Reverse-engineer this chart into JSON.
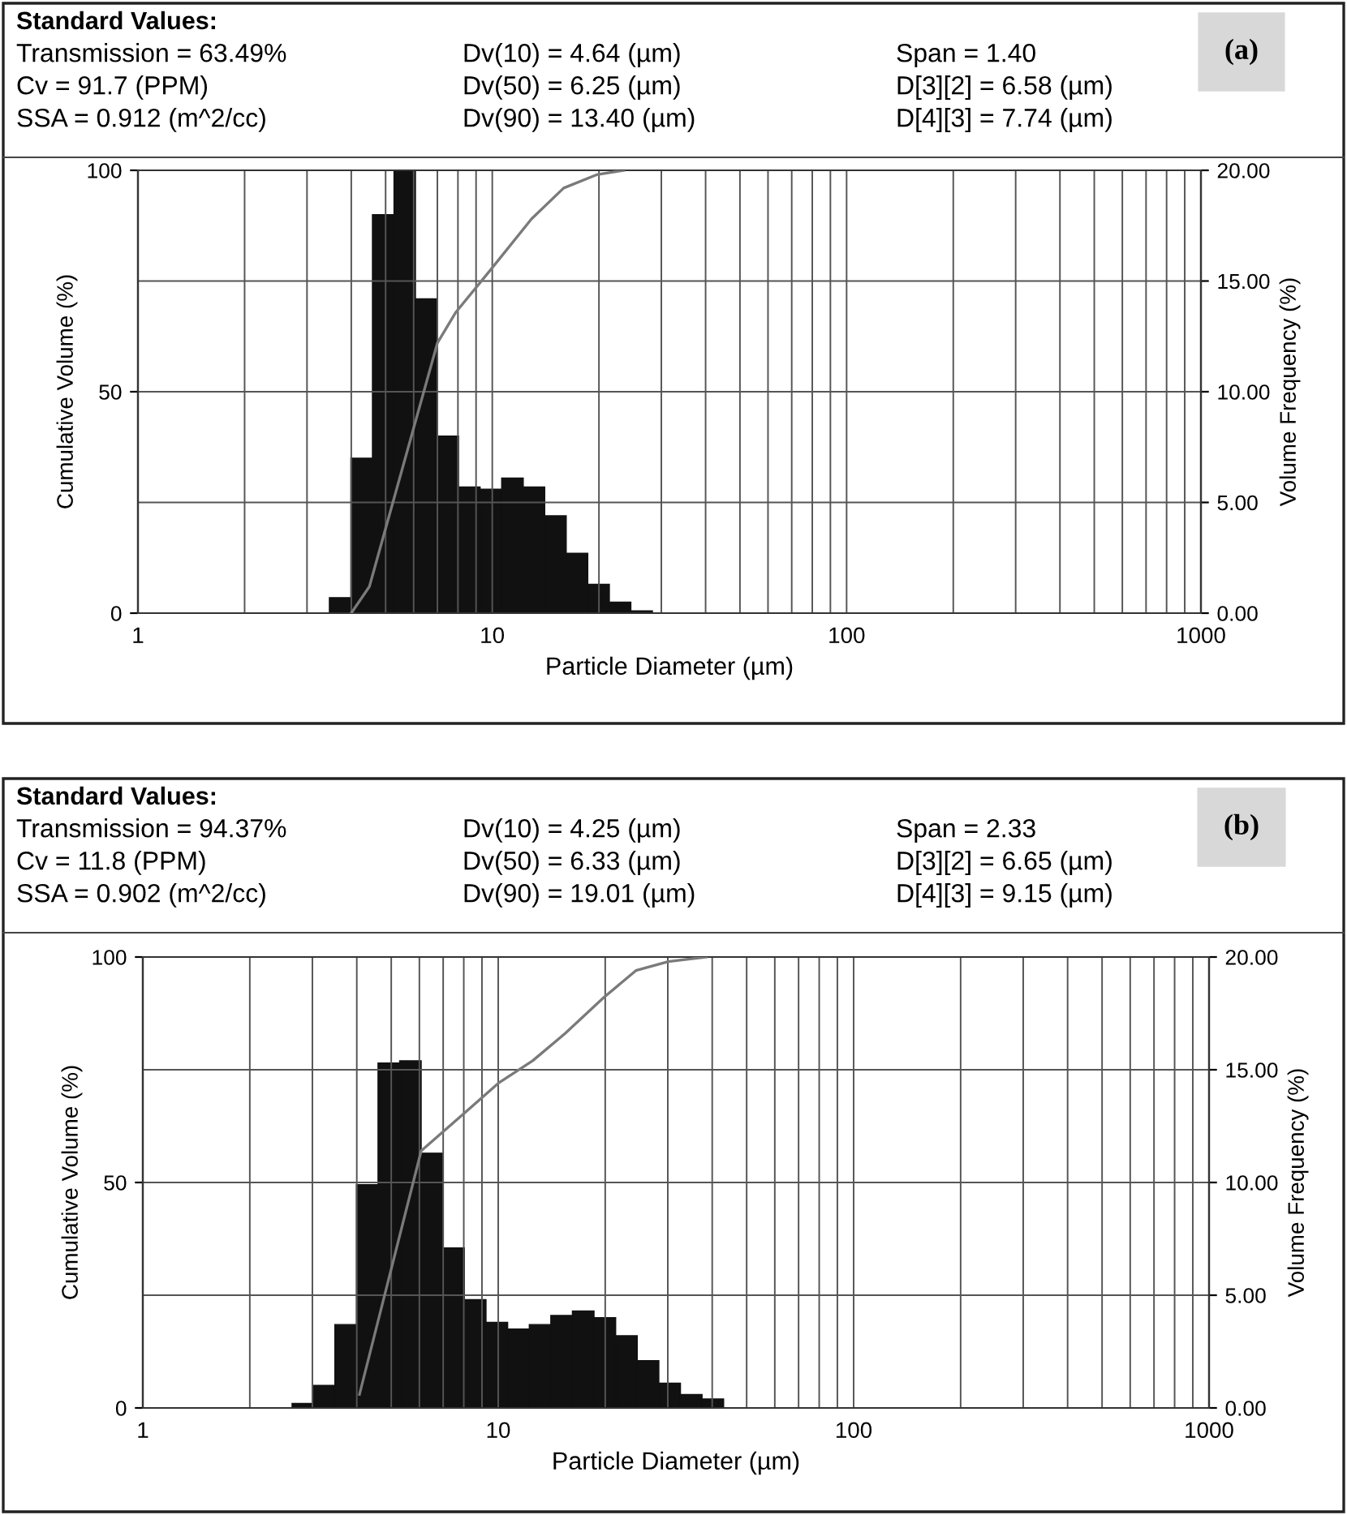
{
  "chart_data": [
    {
      "type": "histogram",
      "xlabel": "Particle Diameter (µm)",
      "ylabel": "Cumulative Volume (%)",
      "y2label": "Volume Frequency (%)",
      "log": "x",
      "grid": true,
      "line_style": "solid",
      "annotations": [
        "Standard Values:",
        "Transmission = 63.49%",
        "Cv = 91.7 (PPM)",
        "SSA = 0.912 (m^2/cc)",
        "Dv(10) = 4.64 (µm)",
        "Dv(50) = 6.25 (µm)",
        "Dv(90) = 13.40 (µm)",
        "Span = 1.40",
        "D[3][2] = 6.58 (µm)",
        "D[4][3] = 7.74 (µm)",
        "(a)"
      ],
      "xlim": [
        1,
        1000
      ],
      "xticks": [
        1,
        {
          "value": 2,
          "label": null
        },
        {
          "value": 3,
          "label": null
        },
        {
          "value": 4,
          "label": null
        },
        {
          "value": 5,
          "label": null
        },
        {
          "value": 6,
          "label": null
        },
        {
          "value": 7,
          "label": null
        },
        {
          "value": 8,
          "label": null
        },
        {
          "value": 9,
          "label": null
        },
        10,
        {
          "value": 20,
          "label": null
        },
        {
          "value": 30,
          "label": null
        },
        {
          "value": 40,
          "label": null
        },
        {
          "value": 50,
          "label": null
        },
        {
          "value": 60,
          "label": null
        },
        {
          "value": 70,
          "label": null
        },
        {
          "value": 80,
          "label": null
        },
        {
          "value": 90,
          "label": null
        },
        100,
        {
          "value": 200,
          "label": null
        },
        {
          "value": 300,
          "label": null
        },
        {
          "value": 400,
          "label": null
        },
        {
          "value": 500,
          "label": null
        },
        {
          "value": 600,
          "label": null
        },
        {
          "value": 700,
          "label": null
        },
        {
          "value": 800,
          "label": null
        },
        {
          "value": 900,
          "label": null
        },
        1000
      ],
      "ylim": [
        0,
        100
      ],
      "yticks": [
        0,
        50,
        100
      ],
      "y2lim": [
        0,
        20
      ],
      "y2ticks": [
        {
          "value": 0,
          "label": "0.00"
        },
        {
          "value": 5,
          "label": "5.00"
        },
        {
          "value": 10,
          "label": "10.00"
        },
        {
          "value": 15,
          "label": "15.00"
        },
        {
          "value": 20,
          "label": "20.00"
        }
      ],
      "series": [
        {
          "axis": "y2",
          "color": "#111111",
          "bins": [
            3.47,
            3.99,
            4.59,
            5.28,
            6.07,
            6.98,
            8.03,
            9.24,
            10.63,
            12.23,
            14.06,
            16.17,
            18.6,
            21.4,
            24.61,
            28.31
          ],
          "values": [
            0.7,
            7.0,
            18.0,
            20.0,
            14.2,
            8.0,
            5.7,
            5.6,
            6.1,
            5.7,
            4.4,
            2.7,
            1.3,
            0.5,
            0.1
          ]
        },
        {
          "type": "line",
          "color": "#7a7a7a",
          "x": [
            4.0,
            4.5,
            7.0,
            7.9,
            10.0,
            12.9,
            15.9,
            19.7,
            23.5
          ],
          "values": [
            0,
            6,
            61,
            68,
            78,
            89,
            96,
            99,
            100
          ]
        }
      ]
    },
    {
      "type": "histogram",
      "xlabel": "Particle Diameter (µm)",
      "ylabel": "Cumulative Volume (%)",
      "y2label": "Volume Frequency (%)",
      "log": "x",
      "grid": true,
      "line_style": "solid",
      "annotations": [
        "Standard Values:",
        "Transmission = 94.37%",
        "Cv = 11.8 (PPM)",
        "SSA = 0.902 (m^2/cc)",
        "Dv(10) = 4.25 (µm)",
        "Dv(50) = 6.33 (µm)",
        "Dv(90) = 19.01 (µm)",
        "Span = 2.33",
        "D[3][2] = 6.65 (µm)",
        "D[4][3] = 9.15 (µm)",
        "(b)"
      ],
      "xlim": [
        1,
        1000
      ],
      "xticks": [
        1,
        {
          "value": 2,
          "label": null
        },
        {
          "value": 3,
          "label": null
        },
        {
          "value": 4,
          "label": null
        },
        {
          "value": 5,
          "label": null
        },
        {
          "value": 6,
          "label": null
        },
        {
          "value": 7,
          "label": null
        },
        {
          "value": 8,
          "label": null
        },
        {
          "value": 9,
          "label": null
        },
        10,
        {
          "value": 20,
          "label": null
        },
        {
          "value": 30,
          "label": null
        },
        {
          "value": 40,
          "label": null
        },
        {
          "value": 50,
          "label": null
        },
        {
          "value": 60,
          "label": null
        },
        {
          "value": 70,
          "label": null
        },
        {
          "value": 80,
          "label": null
        },
        {
          "value": 90,
          "label": null
        },
        100,
        {
          "value": 200,
          "label": null
        },
        {
          "value": 300,
          "label": null
        },
        {
          "value": 400,
          "label": null
        },
        {
          "value": 500,
          "label": null
        },
        {
          "value": 600,
          "label": null
        },
        {
          "value": 700,
          "label": null
        },
        {
          "value": 800,
          "label": null
        },
        {
          "value": 900,
          "label": null
        },
        1000
      ],
      "ylim": [
        0,
        100
      ],
      "yticks": [
        0,
        50,
        100
      ],
      "y2lim": [
        0,
        20
      ],
      "y2ticks": [
        {
          "value": 0,
          "label": "0.00"
        },
        {
          "value": 5,
          "label": "5.00"
        },
        {
          "value": 10,
          "label": "10.00"
        },
        {
          "value": 15,
          "label": "15.00"
        },
        {
          "value": 20,
          "label": "20.00"
        }
      ],
      "series": [
        {
          "axis": "y2",
          "color": "#111111",
          "bins": [
            2.63,
            3.02,
            3.47,
            3.99,
            4.59,
            5.28,
            6.07,
            6.98,
            8.03,
            9.24,
            10.63,
            12.23,
            14.06,
            16.17,
            18.6,
            21.4,
            24.61,
            28.31,
            32.56,
            37.45,
            43.07
          ],
          "values": [
            0.2,
            1.0,
            3.7,
            9.9,
            15.3,
            15.4,
            11.3,
            7.1,
            4.8,
            3.8,
            3.5,
            3.7,
            4.1,
            4.3,
            4.0,
            3.2,
            2.1,
            1.1,
            0.6,
            0.4
          ]
        },
        {
          "type": "line",
          "color": "#7a7a7a",
          "x": [
            4.07,
            6.07,
            8.2,
            10.0,
            12.5,
            15.4,
            19.8,
            24.4,
            30.1,
            38.5
          ],
          "values": [
            3,
            57,
            66,
            72,
            77,
            83,
            91,
            97,
            99,
            100
          ]
        }
      ]
    }
  ]
}
